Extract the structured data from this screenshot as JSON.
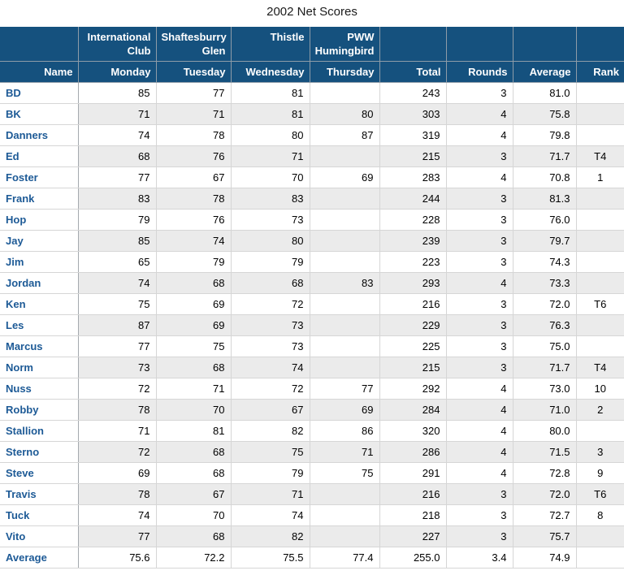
{
  "title": "2002 Net Scores",
  "colors": {
    "header_bg": "#15517E",
    "header_divider": "#8E9CA8",
    "name_text": "#1D5A96",
    "row_alt_bg": "#EBEBEB",
    "body_border": "#D6D6D6",
    "name_col_border": "#A4A9AE"
  },
  "table": {
    "course_header_row": [
      "",
      "International Club",
      "Shaftesburry Glen",
      "Thistle",
      "PWW Humingbird",
      "",
      "",
      "",
      ""
    ],
    "column_headers": [
      "Name",
      "Monday",
      "Tuesday",
      "Wednesday",
      "Thursday",
      "Total",
      "Rounds",
      "Average",
      "Rank"
    ],
    "rows": [
      [
        "BD",
        "85",
        "77",
        "81",
        "",
        "243",
        "3",
        "81.0",
        ""
      ],
      [
        "BK",
        "71",
        "71",
        "81",
        "80",
        "303",
        "4",
        "75.8",
        ""
      ],
      [
        "Danners",
        "74",
        "78",
        "80",
        "87",
        "319",
        "4",
        "79.8",
        ""
      ],
      [
        "Ed",
        "68",
        "76",
        "71",
        "",
        "215",
        "3",
        "71.7",
        "T4"
      ],
      [
        "Foster",
        "77",
        "67",
        "70",
        "69",
        "283",
        "4",
        "70.8",
        "1"
      ],
      [
        "Frank",
        "83",
        "78",
        "83",
        "",
        "244",
        "3",
        "81.3",
        ""
      ],
      [
        "Hop",
        "79",
        "76",
        "73",
        "",
        "228",
        "3",
        "76.0",
        ""
      ],
      [
        "Jay",
        "85",
        "74",
        "80",
        "",
        "239",
        "3",
        "79.7",
        ""
      ],
      [
        "Jim",
        "65",
        "79",
        "79",
        "",
        "223",
        "3",
        "74.3",
        ""
      ],
      [
        "Jordan",
        "74",
        "68",
        "68",
        "83",
        "293",
        "4",
        "73.3",
        ""
      ],
      [
        "Ken",
        "75",
        "69",
        "72",
        "",
        "216",
        "3",
        "72.0",
        "T6"
      ],
      [
        "Les",
        "87",
        "69",
        "73",
        "",
        "229",
        "3",
        "76.3",
        ""
      ],
      [
        "Marcus",
        "77",
        "75",
        "73",
        "",
        "225",
        "3",
        "75.0",
        ""
      ],
      [
        "Norm",
        "73",
        "68",
        "74",
        "",
        "215",
        "3",
        "71.7",
        "T4"
      ],
      [
        "Nuss",
        "72",
        "71",
        "72",
        "77",
        "292",
        "4",
        "73.0",
        "10"
      ],
      [
        "Robby",
        "78",
        "70",
        "67",
        "69",
        "284",
        "4",
        "71.0",
        "2"
      ],
      [
        "Stallion",
        "71",
        "81",
        "82",
        "86",
        "320",
        "4",
        "80.0",
        ""
      ],
      [
        "Sterno",
        "72",
        "68",
        "75",
        "71",
        "286",
        "4",
        "71.5",
        "3"
      ],
      [
        "Steve",
        "69",
        "68",
        "79",
        "75",
        "291",
        "4",
        "72.8",
        "9"
      ],
      [
        "Travis",
        "78",
        "67",
        "71",
        "",
        "216",
        "3",
        "72.0",
        "T6"
      ],
      [
        "Tuck",
        "74",
        "70",
        "74",
        "",
        "218",
        "3",
        "72.7",
        "8"
      ],
      [
        "Vito",
        "77",
        "68",
        "82",
        "",
        "227",
        "3",
        "75.7",
        ""
      ]
    ],
    "footer_row": [
      "Average",
      "75.6",
      "72.2",
      "75.5",
      "77.4",
      "255.0",
      "3.4",
      "74.9",
      ""
    ]
  }
}
